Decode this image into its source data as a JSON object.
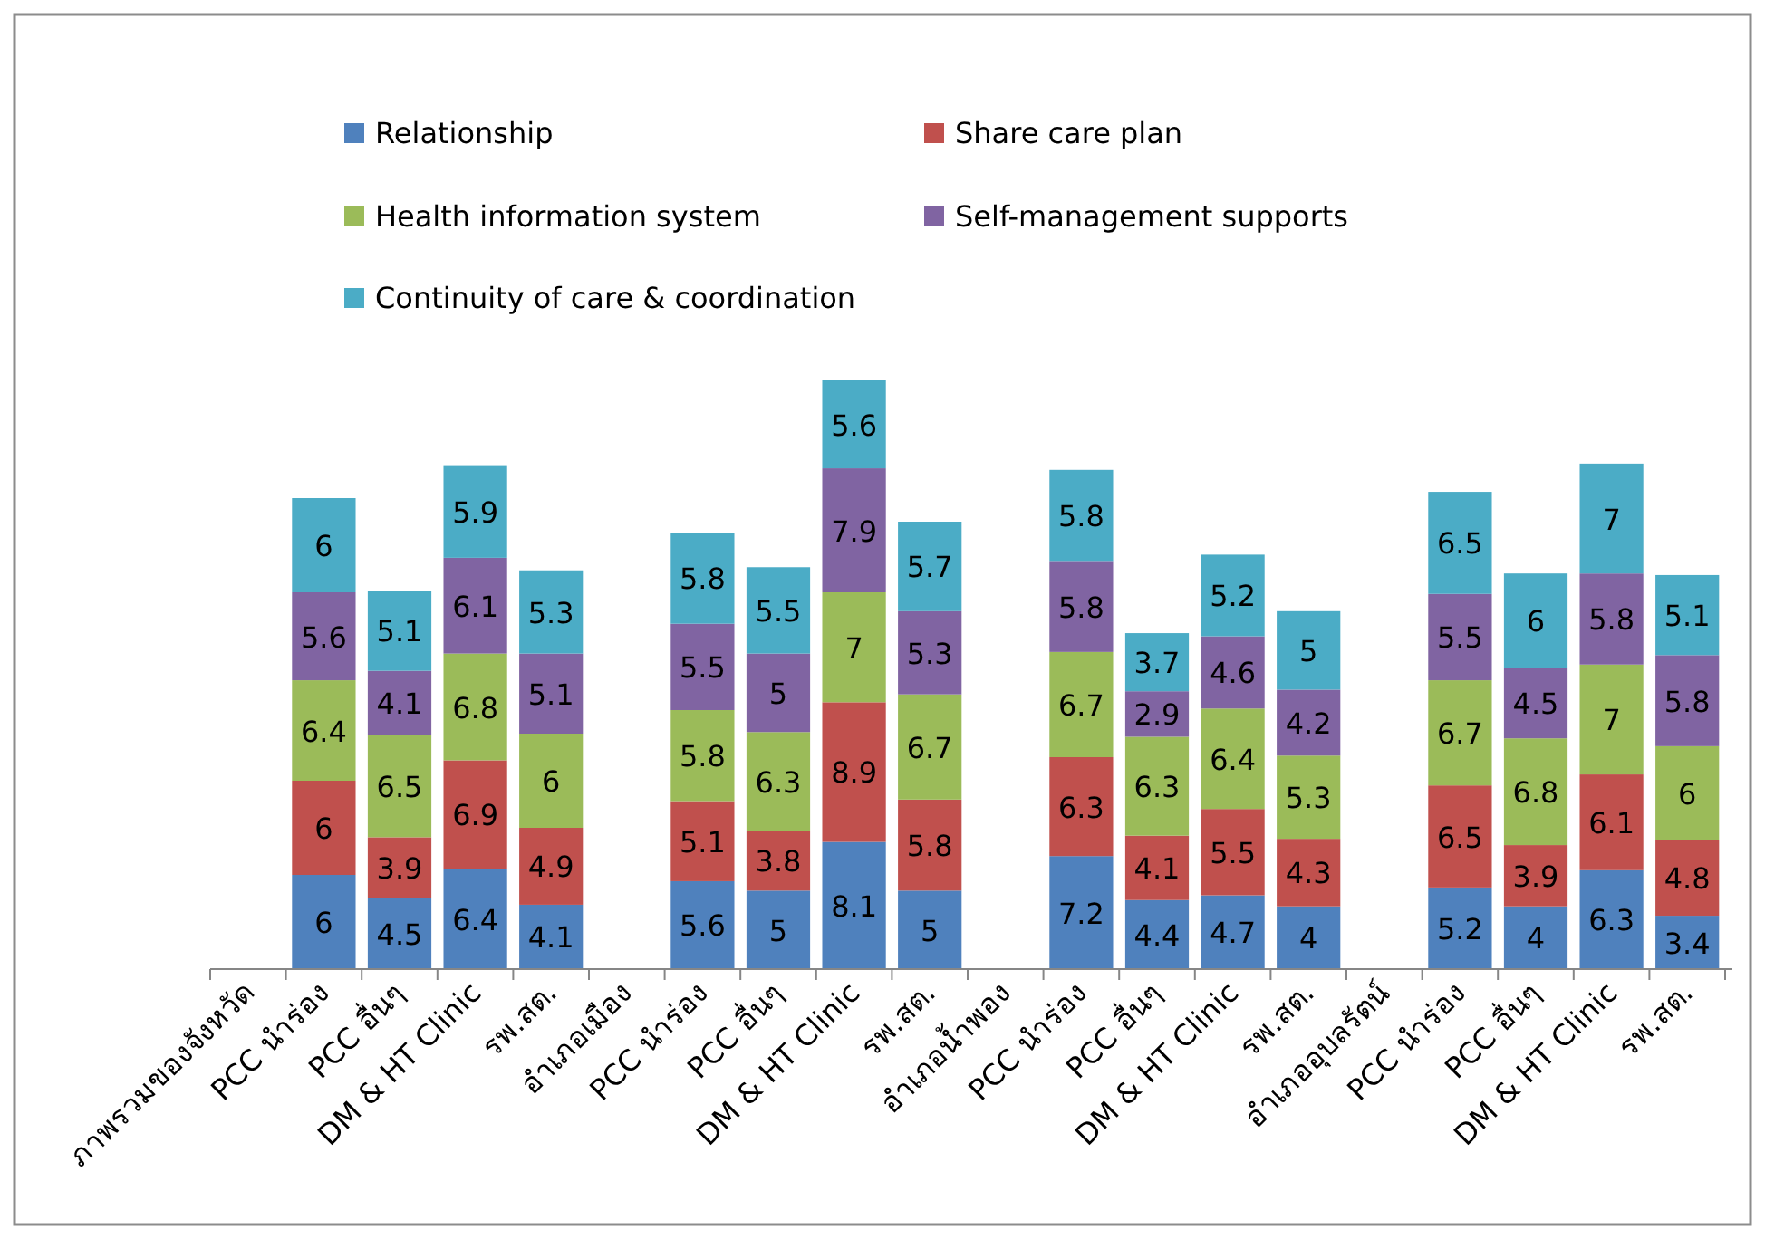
{
  "chart_data": {
    "type": "bar",
    "stacked": true,
    "data_labels": true,
    "legend": "top",
    "categories": [
      "ภาพรวมของจังหวัด",
      "PCC นำร่อง",
      "PCC อื่นๆ",
      "DM & HT Clinic",
      "รพ.สต.",
      "อำเภอเมือง",
      "PCC นำร่อง",
      "PCC อื่นๆ",
      "DM & HT Clinic",
      "รพ.สต.",
      "อำเภอน้ำพอง",
      "PCC นำร่อง",
      "PCC อื่นๆ",
      "DM & HT Clinic",
      "รพ.สต.",
      "อำเภออุบลรัตน์",
      "PCC นำร่อง",
      "PCC อื่นๆ",
      "DM & HT Clinic",
      "รพ.สต."
    ],
    "series": [
      {
        "name": "Relationship",
        "color": "#4f81bd",
        "values": [
          null,
          6,
          4.5,
          6.4,
          4.1,
          null,
          5.6,
          5,
          8.1,
          5,
          null,
          7.2,
          4.4,
          4.7,
          4,
          null,
          5.2,
          4,
          6.3,
          3.4
        ]
      },
      {
        "name": "Share care plan",
        "color": "#c0504d",
        "values": [
          null,
          6,
          3.9,
          6.9,
          4.9,
          null,
          5.1,
          3.8,
          8.9,
          5.8,
          null,
          6.3,
          4.1,
          5.5,
          4.3,
          null,
          6.5,
          3.9,
          6.1,
          4.8
        ]
      },
      {
        "name": "Health information system",
        "color": "#9bbb59",
        "values": [
          null,
          6.4,
          6.5,
          6.8,
          6,
          null,
          5.8,
          6.3,
          7,
          6.7,
          null,
          6.7,
          6.3,
          6.4,
          5.3,
          null,
          6.7,
          6.8,
          7,
          6
        ]
      },
      {
        "name": "Self-management supports",
        "color": "#8064a2",
        "values": [
          null,
          5.6,
          4.1,
          6.1,
          5.1,
          null,
          5.5,
          5,
          7.9,
          5.3,
          null,
          5.8,
          2.9,
          4.6,
          4.2,
          null,
          5.5,
          4.5,
          5.8,
          5.8
        ]
      },
      {
        "name": "Continuity of care & coordination",
        "color": "#4bacc6",
        "values": [
          null,
          6,
          5.1,
          5.9,
          5.3,
          null,
          5.8,
          5.5,
          5.6,
          5.7,
          null,
          5.8,
          3.7,
          5.2,
          5,
          null,
          6.5,
          6,
          7,
          5.1
        ]
      }
    ]
  }
}
